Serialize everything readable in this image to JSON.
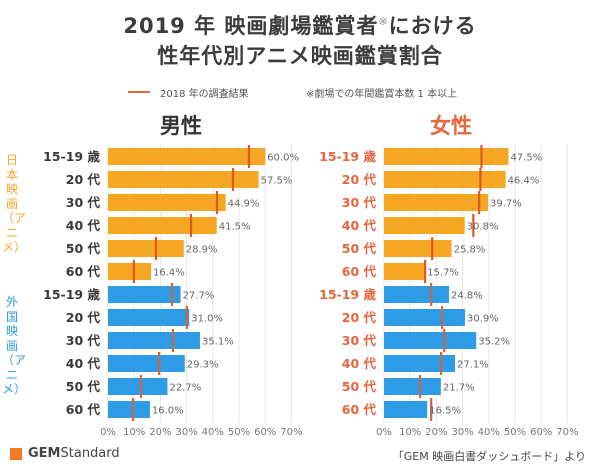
{
  "title": {
    "line1_main": "2019 年 映画劇場鑑賞者",
    "line1_mark": "※",
    "line1_tail": "における",
    "line2": "性年代別アニメ映画鑑賞割合"
  },
  "legend": {
    "marker_label": "2018 年の調査結果",
    "note": "※劇場での年間鑑賞本数 1 本以上",
    "marker_color": "#e8643c"
  },
  "group_labels": {
    "japanese": "日本映画（アニメ）",
    "foreign": "外国映画（アニメ）"
  },
  "footer": {
    "brand_bold": "GEM",
    "brand_rest": "Standard",
    "source": "「GEM 映画白書ダッシュボード」より"
  },
  "colors": {
    "japanese_bar": "#f5a623",
    "foreign_bar": "#2e9be6",
    "marker": "#e8643c",
    "male_labels": "#3a3a3a",
    "female_labels": "#e8643c",
    "grid": "#e6e6e6",
    "value_text": "#666666"
  },
  "chart_data": [
    {
      "type": "bar",
      "orientation": "horizontal",
      "title": "男性",
      "categories": [
        "15-19 歳",
        "20 代",
        "30 代",
        "40 代",
        "50 代",
        "60 代",
        "15-19 歳",
        "20 代",
        "30 代",
        "40 代",
        "50 代",
        "60 代"
      ],
      "groups": [
        "日本映画（アニメ）",
        "外国映画（アニメ）"
      ],
      "series": [
        {
          "name": "日本映画（アニメ）2019",
          "values": [
            60.0,
            57.5,
            44.9,
            41.5,
            28.9,
            16.4
          ]
        },
        {
          "name": "外国映画（アニメ）2019",
          "values": [
            27.7,
            31.0,
            35.1,
            29.3,
            22.7,
            16.0
          ]
        },
        {
          "name": "日本映画（アニメ）2018 (marker)",
          "values": [
            53.8,
            47.7,
            41.6,
            31.7,
            18.3,
            9.9
          ]
        },
        {
          "name": "外国映画（アニメ）2018 (marker)",
          "values": [
            24.4,
            30.1,
            24.8,
            19.5,
            12.6,
            9.5
          ]
        }
      ],
      "value_labels": [
        "60.0%",
        "57.5%",
        "44.9%",
        "41.5%",
        "28.9%",
        "16.4%",
        "27.7%",
        "31.0%",
        "35.1%",
        "29.3%",
        "22.7%",
        "16.0%"
      ],
      "xlim": [
        0,
        70
      ],
      "xticks": [
        "0%",
        "10%",
        "20%",
        "30%",
        "40%",
        "50%",
        "60%",
        "70%"
      ],
      "grid": true,
      "xlabel": "",
      "ylabel": ""
    },
    {
      "type": "bar",
      "orientation": "horizontal",
      "title": "女性",
      "categories": [
        "15-19 歳",
        "20 代",
        "30 代",
        "40 代",
        "50 代",
        "60 代",
        "15-19 歳",
        "20 代",
        "30 代",
        "40 代",
        "50 代",
        "60 代"
      ],
      "groups": [
        "日本映画（アニメ）",
        "外国映画（アニメ）"
      ],
      "series": [
        {
          "name": "日本映画（アニメ）2019",
          "values": [
            47.5,
            46.4,
            39.7,
            30.8,
            25.8,
            15.7
          ]
        },
        {
          "name": "外国映画（アニメ）2019",
          "values": [
            24.8,
            30.9,
            35.2,
            27.1,
            21.7,
            16.5
          ]
        },
        {
          "name": "日本映画（アニメ）2018 (marker)",
          "values": [
            37.2,
            36.8,
            36.3,
            34.1,
            18.4,
            15.7
          ]
        },
        {
          "name": "外国映画（アニメ）2018 (marker)",
          "values": [
            18.0,
            22.2,
            23.0,
            21.8,
            13.8,
            18.0
          ]
        }
      ],
      "value_labels": [
        "47.5%",
        "46.4%",
        "39.7%",
        "30.8%",
        "25.8%",
        "15.7%",
        "24.8%",
        "30.9%",
        "35.2%",
        "27.1%",
        "21.7%",
        "16.5%"
      ],
      "xlim": [
        0,
        70
      ],
      "xticks": [
        "0%",
        "10%",
        "20%",
        "30%",
        "40%",
        "50%",
        "60%",
        "70%"
      ],
      "grid": true,
      "xlabel": "",
      "ylabel": ""
    }
  ]
}
